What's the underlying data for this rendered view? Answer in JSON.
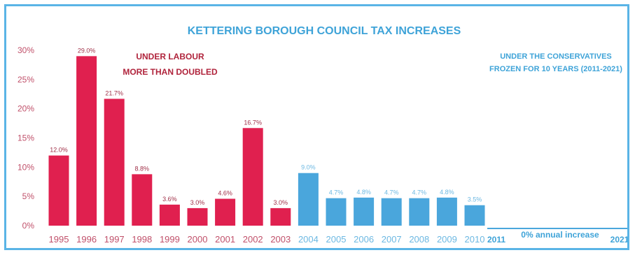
{
  "chart_data": {
    "type": "bar",
    "title": "KETTERING BOROUGH COUNCIL TAX INCREASES",
    "categories": [
      "1995",
      "1996",
      "1997",
      "1998",
      "1999",
      "2000",
      "2001",
      "2002",
      "2003",
      "2004",
      "2005",
      "2006",
      "2007",
      "2008",
      "2009",
      "2010"
    ],
    "values": [
      12.0,
      29.0,
      21.7,
      8.8,
      3.6,
      3.0,
      4.6,
      16.7,
      3.0,
      9.0,
      4.7,
      4.8,
      4.7,
      4.7,
      4.8,
      3.5
    ],
    "value_labels": [
      "12.0%",
      "29.0%",
      "21.7%",
      "8.8%",
      "3.6%",
      "3.0%",
      "4.6%",
      "16.7%",
      "3.0%",
      "9.0%",
      "4.7%",
      "4.8%",
      "4.7%",
      "4.7%",
      "4.8%",
      "3.5%"
    ],
    "series_colors": [
      "#e0204f",
      "#e0204f",
      "#e0204f",
      "#e0204f",
      "#e0204f",
      "#e0204f",
      "#e0204f",
      "#e0204f",
      "#e0204f",
      "#4aa6dc",
      "#4aa6dc",
      "#4aa6dc",
      "#4aa6dc",
      "#4aa6dc",
      "#4aa6dc",
      "#4aa6dc"
    ],
    "yticks": [
      "0%",
      "5%",
      "10%",
      "15%",
      "20%",
      "25%",
      "30%"
    ],
    "ylim": [
      0,
      30
    ],
    "grid": false,
    "frozen_period": {
      "start_label": "2011",
      "end_label": "2021",
      "label": "0% annual increase"
    },
    "annotations": {
      "labour": [
        "UNDER LABOUR",
        "MORE THAN DOUBLED"
      ],
      "conservatives": [
        "UNDER THE CONSERVATIVES",
        "FROZEN FOR 10 YEARS (2011-2021)"
      ]
    }
  },
  "colors": {
    "labour": "#e0204f",
    "conservative": "#4aa6dc",
    "title": "#3ea3d8",
    "labour_text": "#b0243c",
    "axis_label": "#c0506a",
    "frame": "#5ab4e6"
  }
}
